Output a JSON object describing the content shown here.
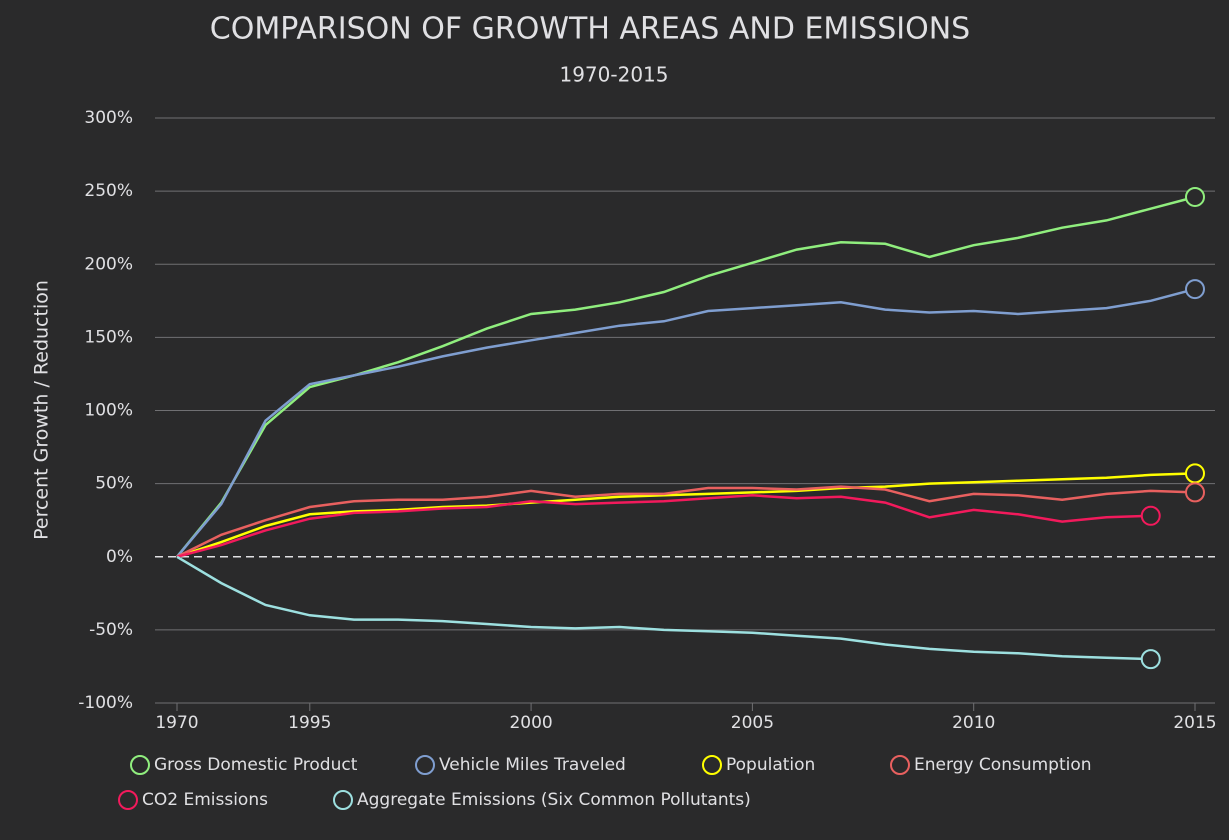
{
  "chart_data": {
    "type": "line",
    "title": "COMPARISON OF GROWTH AREAS AND EMISSIONS",
    "subtitle": "1970-2015",
    "y_label": "Percent Growth / Reduction",
    "categories": [
      "1970",
      null,
      null,
      "1995",
      null,
      null,
      null,
      null,
      "2000",
      null,
      null,
      null,
      null,
      "2005",
      null,
      null,
      null,
      null,
      "2010",
      null,
      null,
      null,
      null,
      "2015"
    ],
    "ylim": [
      -100,
      300
    ],
    "yticks": [
      {
        "value": -100,
        "label": "-100%"
      },
      {
        "value": -50,
        "label": "-50%"
      },
      {
        "value": 0,
        "label": "0%"
      },
      {
        "value": 50,
        "label": "50%"
      },
      {
        "value": 100,
        "label": "100%"
      },
      {
        "value": 150,
        "label": "150%"
      },
      {
        "value": 200,
        "label": "200%"
      },
      {
        "value": 250,
        "label": "250%"
      },
      {
        "value": 300,
        "label": "300%"
      }
    ],
    "grid": true,
    "legend": "bottom",
    "series": [
      {
        "name": "Gross Domestic Product",
        "color": "#90ee7e",
        "values": [
          0,
          37,
          90,
          116,
          124,
          133,
          144,
          156,
          166,
          169,
          174,
          181,
          192,
          201,
          210,
          215,
          214,
          205,
          213,
          218,
          225,
          230,
          238,
          246
        ]
      },
      {
        "name": "Vehicle Miles Traveled",
        "color": "#7f9ed0",
        "values": [
          0,
          36,
          93,
          118,
          124,
          130,
          137,
          143,
          148,
          153,
          158,
          161,
          168,
          170,
          172,
          174,
          169,
          167,
          168,
          166,
          168,
          170,
          175,
          183
        ]
      },
      {
        "name": "Population",
        "color": "#ffff00",
        "values": [
          0,
          10,
          21,
          29,
          31,
          32,
          34,
          35,
          37,
          39,
          41,
          42,
          43,
          44,
          45,
          47,
          48,
          50,
          51,
          52,
          53,
          54,
          56,
          57
        ]
      },
      {
        "name": "Energy Consumption",
        "color": "#e8605f",
        "values": [
          0,
          15,
          25,
          34,
          38,
          39,
          39,
          41,
          45,
          41,
          43,
          43,
          47,
          47,
          46,
          48,
          46,
          38,
          43,
          42,
          39,
          43,
          45,
          44
        ]
      },
      {
        "name": "CO2 Emissions",
        "color": "#f21a5c",
        "values": [
          0,
          8,
          18,
          26,
          30,
          31,
          33,
          34,
          38,
          36,
          37,
          38,
          40,
          42,
          40,
          41,
          37,
          27,
          32,
          29,
          24,
          27,
          28,
          null
        ]
      },
      {
        "name": "Aggregate Emissions (Six Common Pollutants)",
        "color": "#9de0e0",
        "values": [
          0,
          -18,
          -33,
          -40,
          -43,
          -43,
          -44,
          -46,
          -48,
          -49,
          -48,
          -50,
          -51,
          -52,
          -54,
          -56,
          -60,
          -63,
          -65,
          -66,
          -68,
          -69,
          -70,
          null
        ]
      }
    ]
  }
}
